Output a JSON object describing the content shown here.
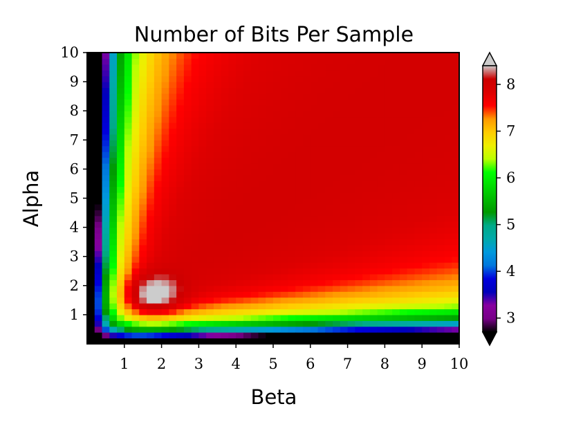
{
  "chart_data": {
    "type": "heatmap",
    "title": "Number of Bits Per Sample",
    "xlabel": "Beta",
    "ylabel": "Alpha",
    "xlim": [
      0,
      10
    ],
    "ylim": [
      0,
      10
    ],
    "xticks": [
      "1",
      "2",
      "3",
      "4",
      "5",
      "6",
      "7",
      "8",
      "9",
      "10"
    ],
    "yticks": [
      "1",
      "2",
      "3",
      "4",
      "5",
      "6",
      "7",
      "8",
      "9",
      "10"
    ],
    "grid_resolution": 50,
    "colorbar": {
      "colormap": "nipy_spectral",
      "range": [
        2.7,
        8.4
      ],
      "ticks": [
        "3",
        "4",
        "5",
        "6",
        "7",
        "8"
      ],
      "extend": "both",
      "over_color": "#cccccc",
      "under_color": "#000000"
    },
    "features": {
      "peak_region": {
        "beta_range": [
          1,
          2.5
        ],
        "alpha_range": [
          0.8,
          2.5
        ],
        "value": ">8.4"
      },
      "plateau_value": 8.0,
      "low_edge_value": 2.7,
      "diagonal_ridge": "alpha ≈ beta",
      "edge_falloff": "decreases toward alpha→0 and beta→0"
    }
  }
}
